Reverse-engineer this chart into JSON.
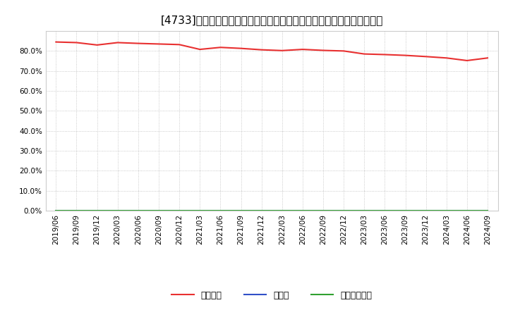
{
  "title": "[4733]　自己資本、のれん、繰延税金資産の総資産に対する比率の推移",
  "x_labels": [
    "2019/06",
    "2019/09",
    "2019/12",
    "2020/03",
    "2020/06",
    "2020/09",
    "2020/12",
    "2021/03",
    "2021/06",
    "2021/09",
    "2021/12",
    "2022/03",
    "2022/06",
    "2022/09",
    "2022/12",
    "2023/03",
    "2023/06",
    "2023/09",
    "2023/12",
    "2024/03",
    "2024/06",
    "2024/09"
  ],
  "jiko_shihon": [
    84.5,
    84.2,
    83.0,
    84.2,
    83.8,
    83.5,
    83.2,
    80.8,
    81.8,
    81.3,
    80.6,
    80.2,
    80.8,
    80.3,
    80.0,
    78.5,
    78.2,
    77.8,
    77.2,
    76.5,
    75.2,
    76.5
  ],
  "noren": [
    0.0,
    0.0,
    0.0,
    0.0,
    0.0,
    0.0,
    0.0,
    0.0,
    0.0,
    0.0,
    0.0,
    0.0,
    0.0,
    0.0,
    0.0,
    0.0,
    0.0,
    0.0,
    0.0,
    0.0,
    0.0,
    0.0
  ],
  "kurinobe_zeikin": [
    0.0,
    0.0,
    0.0,
    0.0,
    0.0,
    0.0,
    0.0,
    0.0,
    0.0,
    0.0,
    0.0,
    0.0,
    0.0,
    0.0,
    0.0,
    0.0,
    0.0,
    0.0,
    0.0,
    0.0,
    0.0,
    0.0
  ],
  "color_jiko": "#e83030",
  "color_noren": "#3050c8",
  "color_kurinobe": "#30a030",
  "ylim": [
    0,
    90
  ],
  "yticks": [
    0,
    10,
    20,
    30,
    40,
    50,
    60,
    70,
    80
  ],
  "background_color": "#ffffff",
  "grid_color": "#bbbbbb",
  "legend_labels": [
    "自己資本",
    "のれん",
    "繰延税金資産"
  ],
  "title_fontsize": 11,
  "tick_fontsize": 7.5,
  "legend_fontsize": 9
}
